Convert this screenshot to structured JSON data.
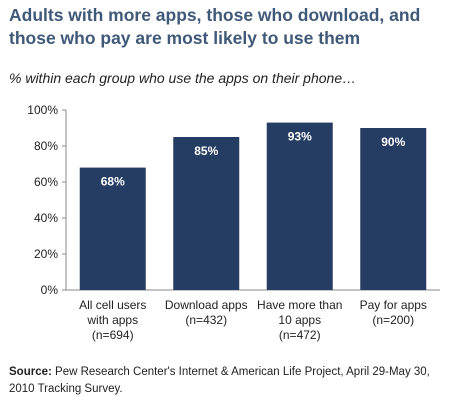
{
  "title": "Adults with more apps, those who download, and those who pay are most likely to use them",
  "subtitle": "% within each group who use the apps on their phone…",
  "source": {
    "label": "Source:",
    "text": "Pew Research Center's Internet & American Life Project, April 29-May 30, 2010 Tracking Survey."
  },
  "colors": {
    "bar": "#253d62",
    "title": "#3f5978"
  },
  "chart_data": {
    "type": "bar",
    "categories": [
      [
        "All cell users",
        "with apps",
        "(n=694)"
      ],
      [
        "Download apps",
        "(n=432)"
      ],
      [
        "Have more than",
        "10 apps",
        "(n=472)"
      ],
      [
        "Pay for apps",
        "(n=200)"
      ]
    ],
    "values": [
      68,
      85,
      93,
      90
    ],
    "value_labels": [
      "68%",
      "85%",
      "93%",
      "90%"
    ],
    "yticks": [
      0,
      20,
      40,
      60,
      80,
      100
    ],
    "ytick_labels": [
      "0%",
      "20%",
      "40%",
      "60%",
      "80%",
      "100%"
    ],
    "ylim": [
      0,
      100
    ],
    "xlabel": "",
    "ylabel": "",
    "grid": false,
    "legend": "none"
  }
}
